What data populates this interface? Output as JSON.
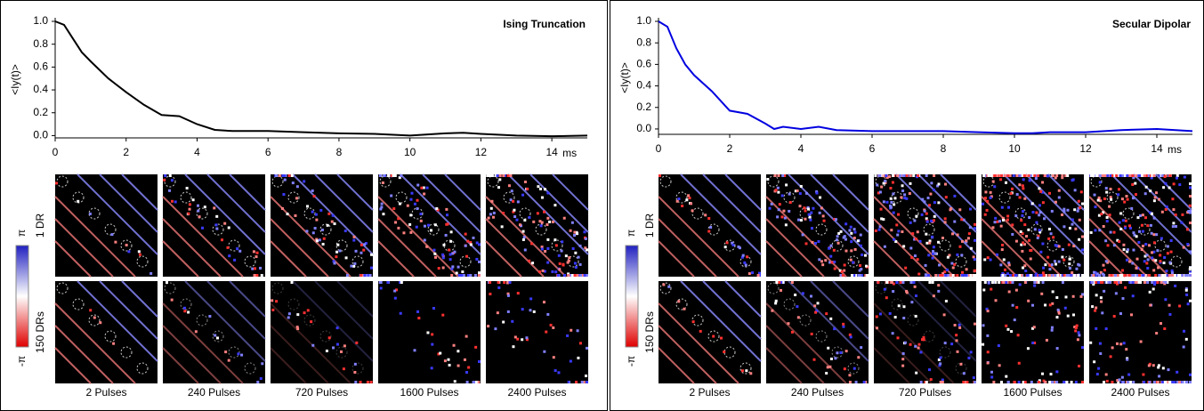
{
  "chart_data": [
    {
      "type": "line",
      "title": "Ising Truncation",
      "y_label": "<Iy(t)>",
      "x_unit": "ms",
      "color": "#000000",
      "x": [
        0,
        0.25,
        0.5,
        0.75,
        1,
        1.5,
        2,
        2.5,
        3,
        3.5,
        4,
        4.5,
        5,
        6,
        7,
        8,
        9,
        10,
        11,
        11.5,
        12,
        13,
        14,
        15
      ],
      "values": [
        1.0,
        0.97,
        0.85,
        0.73,
        0.65,
        0.5,
        0.38,
        0.27,
        0.18,
        0.17,
        0.1,
        0.05,
        0.04,
        0.04,
        0.03,
        0.02,
        0.015,
        0.0,
        0.02,
        0.025,
        0.015,
        0.0,
        -0.005,
        0.0
      ],
      "xlim": [
        0,
        15
      ],
      "ylim": [
        -0.02,
        1.0
      ],
      "xticks": [
        0,
        2,
        4,
        6,
        8,
        10,
        12,
        14
      ],
      "yticks": [
        {
          "value": 0,
          "label": "0.0"
        },
        {
          "value": 0.2,
          "label": "0.2"
        },
        {
          "value": 0.4,
          "label": "0.4"
        },
        {
          "value": 0.6,
          "label": "0.6"
        },
        {
          "value": 0.8,
          "label": "0.8"
        },
        {
          "value": 1,
          "label": "1.0"
        }
      ],
      "row_labels": [
        "1 DR",
        "150 DRs"
      ],
      "column_labels": [
        "2 Pulses",
        "240 Pulses",
        "720 Pulses",
        "1600 Pulses",
        "2400 Pulses"
      ],
      "colorbar": {
        "max_label": "π",
        "min_label": "-π"
      }
    },
    {
      "type": "line",
      "title": "Secular Dipolar",
      "y_label": "<Iy(t)>",
      "x_unit": "ms",
      "color": "#0000e0",
      "x": [
        0,
        0.25,
        0.5,
        0.75,
        1,
        1.5,
        2,
        2.5,
        3,
        3.25,
        3.5,
        4,
        4.5,
        5,
        6,
        7,
        8,
        9,
        10,
        10.5,
        11,
        12,
        13,
        14,
        15
      ],
      "values": [
        1.0,
        0.95,
        0.75,
        0.6,
        0.5,
        0.35,
        0.17,
        0.14,
        0.05,
        0.0,
        0.02,
        0.0,
        0.02,
        -0.01,
        -0.02,
        -0.02,
        -0.02,
        -0.03,
        -0.04,
        -0.04,
        -0.03,
        -0.03,
        -0.01,
        0.0,
        -0.02
      ],
      "xlim": [
        0,
        15
      ],
      "ylim": [
        -0.05,
        1.0
      ],
      "xticks": [
        0,
        2,
        4,
        6,
        8,
        10,
        12,
        14
      ],
      "yticks": [
        {
          "value": 0,
          "label": "0.0"
        },
        {
          "value": 0.2,
          "label": "0.2"
        },
        {
          "value": 0.4,
          "label": "0.4"
        },
        {
          "value": 0.6,
          "label": "0.6"
        },
        {
          "value": 0.8,
          "label": "0.8"
        },
        {
          "value": 1,
          "label": "1.0"
        }
      ],
      "row_labels": [
        "1 DR",
        "150 DRs"
      ],
      "column_labels": [
        "2 Pulses",
        "240 Pulses",
        "720 Pulses",
        "1600 Pulses",
        "2400 Pulses"
      ],
      "colorbar": {
        "max_label": "π",
        "min_label": "-π"
      }
    }
  ]
}
